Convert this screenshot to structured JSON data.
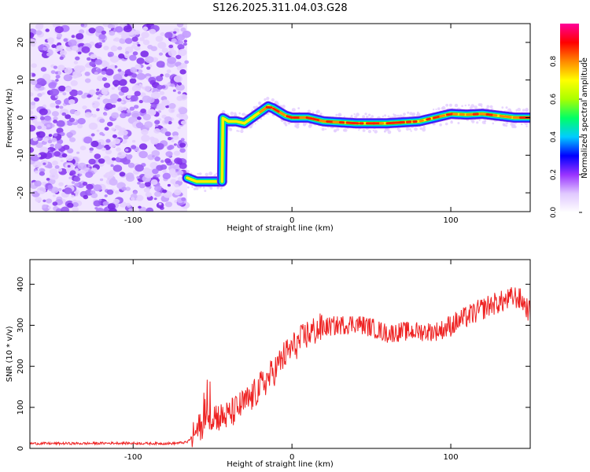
{
  "chart_data": [
    {
      "type": "heatmap",
      "title": "S126.2025.311.04.03.G28",
      "xlabel": "Height of straight line (km)",
      "ylabel": "Frequency (Hz)",
      "xlim": [
        -165,
        150
      ],
      "ylim": [
        -25,
        25
      ],
      "xticks": [
        -100,
        0,
        100
      ],
      "xtick_labels": [
        "-100",
        "0",
        "100"
      ],
      "yticks": [
        -20,
        -10,
        0,
        10,
        20
      ],
      "ytick_labels": [
        "-20",
        "-10",
        "0",
        "10",
        "20"
      ],
      "noise_region_x": [
        -165,
        -66
      ],
      "signal_track": {
        "x": [
          -66,
          -60,
          -54,
          -48,
          -44,
          -44,
          -40,
          -35,
          -30,
          -25,
          -20,
          -15,
          -12,
          -8,
          -4,
          0,
          10,
          20,
          40,
          60,
          80,
          90,
          100,
          110,
          120,
          130,
          140,
          150
        ],
        "y": [
          -16,
          -17,
          -17,
          -17,
          -17,
          0,
          -1,
          -1,
          -1.5,
          0,
          1.5,
          3,
          2.5,
          1.5,
          0.5,
          0,
          0,
          -1,
          -1.5,
          -1.5,
          -1,
          0,
          1,
          0.8,
          1,
          0.5,
          0,
          0
        ]
      },
      "colorbar": {
        "label": "Normalized spectral amplitude",
        "range": [
          0,
          1
        ],
        "ticks": [
          0.0,
          0.2,
          0.4,
          0.6,
          0.8
        ],
        "tick_labels": [
          "0.0",
          "0.2",
          "0.4",
          "0.6",
          "0.8"
        ],
        "colors": [
          "#ffffff",
          "#e0c8ff",
          "#9933ff",
          "#0000ff",
          "#00ccff",
          "#00ff66",
          "#aaff00",
          "#ffff00",
          "#ff8800",
          "#ff0000",
          "#ff0099"
        ]
      }
    },
    {
      "type": "line",
      "xlabel": "Height of straight line (km)",
      "ylabel": "SNR (10 * v/v)",
      "xlim": [
        -165,
        150
      ],
      "ylim": [
        0,
        460
      ],
      "xticks": [
        -100,
        0,
        100
      ],
      "xtick_labels": [
        "-100",
        "0",
        "100"
      ],
      "yticks": [
        0,
        100,
        200,
        300,
        400
      ],
      "ytick_labels": [
        "0",
        "100",
        "200",
        "300",
        "400"
      ],
      "series": [
        {
          "name": "SNR",
          "color": "#ee2222",
          "x": [
            -165,
            -150,
            -130,
            -110,
            -90,
            -75,
            -66,
            -60,
            -55,
            -50,
            -45,
            -40,
            -35,
            -30,
            -25,
            -20,
            -15,
            -10,
            -5,
            0,
            5,
            10,
            20,
            30,
            40,
            50,
            60,
            70,
            80,
            90,
            95,
            100,
            105,
            110,
            115,
            120,
            125,
            130,
            135,
            140,
            145,
            150
          ],
          "values": [
            12,
            12,
            12,
            13,
            12,
            12,
            15,
            40,
            70,
            85,
            75,
            80,
            95,
            110,
            125,
            150,
            170,
            195,
            225,
            245,
            260,
            280,
            295,
            300,
            305,
            295,
            280,
            285,
            285,
            285,
            290,
            300,
            310,
            320,
            330,
            340,
            350,
            355,
            360,
            370,
            360,
            330
          ]
        }
      ]
    }
  ]
}
